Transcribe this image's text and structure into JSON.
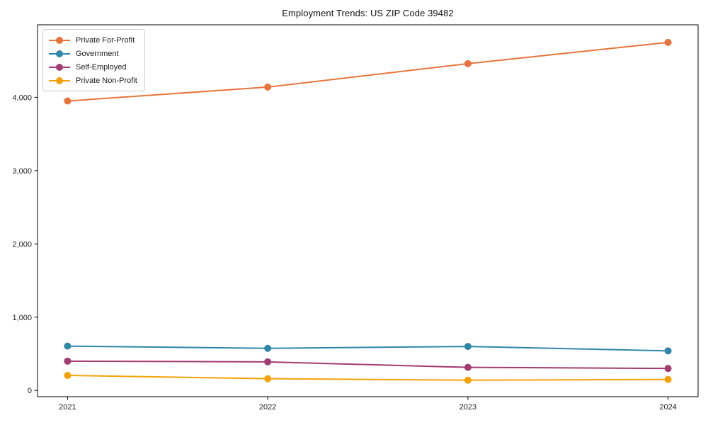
{
  "figure": {
    "background": "#ffffff",
    "axis_color": "#000000"
  },
  "chart_data": {
    "type": "line",
    "title": "Employment Trends: US ZIP Code 39482",
    "xlabel": "",
    "ylabel": "",
    "x": [
      2021,
      2022,
      2023,
      2024
    ],
    "x_tick_labels": [
      "2021",
      "2022",
      "2023",
      "2024"
    ],
    "y_ticks": [
      0,
      1000,
      2000,
      3000,
      4000
    ],
    "y_tick_labels": [
      "0",
      "1,000",
      "2,000",
      "3,000",
      "4,000"
    ],
    "xlim": [
      2020.85,
      2024.15
    ],
    "ylim": [
      -85,
      4990
    ],
    "grid": false,
    "legend_position": "upper-left",
    "marker": "circle",
    "series": [
      {
        "name": "Private For-Profit",
        "color": "#E8743B",
        "values": [
          3950,
          4140,
          4460,
          4750
        ]
      },
      {
        "name": "Government",
        "color": "#2E86AB",
        "values": [
          605,
          575,
          600,
          540
        ]
      },
      {
        "name": "Self-Employed",
        "color": "#A23B72",
        "values": [
          400,
          390,
          315,
          300
        ]
      },
      {
        "name": "Private Non-Profit",
        "color": "#F5A105",
        "values": [
          205,
          160,
          140,
          150
        ]
      }
    ]
  }
}
